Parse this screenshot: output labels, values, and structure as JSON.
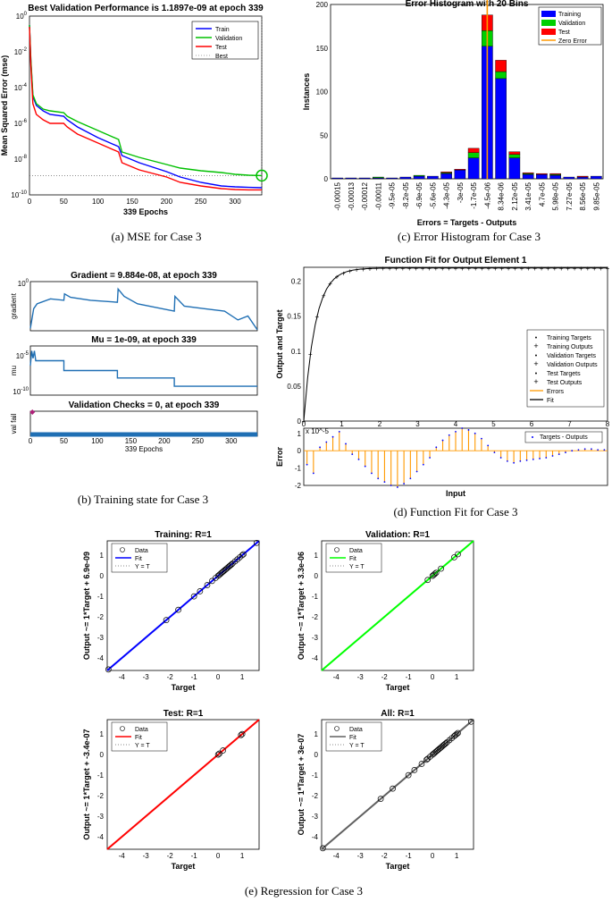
{
  "captions": {
    "a": "(a) MSE for Case 3",
    "b": "(b) Training state for Case 3",
    "c": "(c) Error Histogram for Case 3",
    "d": "(d) Function Fit for Case 3",
    "e": "(e) Regression for Case 3"
  },
  "chart_data": [
    {
      "id": "mse",
      "type": "line",
      "title": "Best Validation Performance is 1.1897e-09 at epoch 339",
      "xlabel": "339 Epochs",
      "ylabel": "Mean Squared Error  (mse)",
      "xlim": [
        0,
        339
      ],
      "yscale": "log",
      "ylim_exp": [
        -10,
        0
      ],
      "xticks": [
        "0",
        "50",
        "100",
        "150",
        "200",
        "250",
        "300"
      ],
      "yticks": [
        "10^0",
        "10^-2",
        "10^-4",
        "10^-6",
        "10^-8",
        "10^-10"
      ],
      "legend": [
        "Train",
        "Validation",
        "Test",
        "Best"
      ],
      "colors": [
        "#0000ff",
        "#00c000",
        "#ff0000",
        "#888888"
      ],
      "x": [
        0,
        2,
        5,
        10,
        20,
        30,
        50,
        55,
        70,
        100,
        130,
        135,
        160,
        200,
        220,
        250,
        280,
        300,
        320,
        339
      ],
      "series": [
        {
          "name": "Train",
          "log10": [
            -0.5,
            -2.5,
            -4.5,
            -5.0,
            -5.3,
            -5.5,
            -5.6,
            -5.8,
            -6.2,
            -6.8,
            -7.3,
            -7.8,
            -8.2,
            -8.7,
            -9.0,
            -9.3,
            -9.5,
            -9.55,
            -9.58,
            -9.6
          ]
        },
        {
          "name": "Validation",
          "log10": [
            -0.5,
            -2.4,
            -4.4,
            -4.9,
            -5.2,
            -5.3,
            -5.4,
            -5.6,
            -5.9,
            -6.4,
            -6.9,
            -7.6,
            -7.9,
            -8.3,
            -8.5,
            -8.65,
            -8.75,
            -8.85,
            -8.9,
            -8.92
          ]
        },
        {
          "name": "Test",
          "log10": [
            -0.6,
            -2.7,
            -4.9,
            -5.5,
            -5.8,
            -6.0,
            -6.0,
            -6.2,
            -6.6,
            -7.1,
            -7.6,
            -8.2,
            -8.6,
            -9.0,
            -9.3,
            -9.5,
            -9.65,
            -9.7,
            -9.72,
            -9.72
          ]
        }
      ],
      "best": {
        "epoch": 339,
        "log10": -8.92
      }
    },
    {
      "id": "training-state",
      "type": "line",
      "xlabel": "339 Epochs",
      "xticks": [
        "0",
        "50",
        "100",
        "150",
        "200",
        "250",
        "300"
      ],
      "panels": [
        {
          "title": "Gradient = 9.884e-08, at epoch 339",
          "ylabel": "gradient",
          "yticks": [
            "10^0"
          ],
          "x": [
            0,
            5,
            10,
            30,
            50,
            51,
            60,
            90,
            130,
            131,
            140,
            160,
            215,
            216,
            230,
            260,
            290,
            310,
            325,
            339
          ],
          "y": [
            0.95,
            0.55,
            0.45,
            0.35,
            0.38,
            0.25,
            0.32,
            0.38,
            0.42,
            0.15,
            0.3,
            0.45,
            0.6,
            0.3,
            0.5,
            0.55,
            0.6,
            0.78,
            0.7,
            0.98
          ]
        },
        {
          "title": "Mu = 1e-09, at epoch 339",
          "ylabel": "mu",
          "yticks": [
            "10^-5",
            "10^-10"
          ],
          "x": [
            0,
            2,
            4,
            6,
            8,
            50,
            50,
            130,
            130,
            215,
            215,
            339
          ],
          "y": [
            0.4,
            0.1,
            0.25,
            0.1,
            0.3,
            0.3,
            0.5,
            0.5,
            0.65,
            0.65,
            0.82,
            0.82
          ]
        },
        {
          "title": "Validation Checks = 0, at epoch 339",
          "ylabel": "val fail",
          "yticks": [],
          "point": {
            "epoch": 3,
            "value": 1
          }
        }
      ]
    },
    {
      "id": "histogram",
      "type": "bar",
      "title": "Error Histogram with 20 Bins",
      "xlabel": "Errors = Targets - Outputs",
      "ylabel": "Instances",
      "ylim": [
        0,
        200
      ],
      "yticks": [
        "0",
        "50",
        "100",
        "150",
        "200"
      ],
      "categories": [
        "-0.00015",
        "-0.00013",
        "-0.00012",
        "-0.00011",
        "-9.5e-05",
        "-8.2e-05",
        "-6.9e-05",
        "-5.6e-05",
        "-4.3e-05",
        "-3e-05",
        "-1.7e-05",
        "-4.5e-06",
        "8.34e-06",
        "2.12e-05",
        "3.41e-05",
        "4.7e-05",
        "5.98e-05",
        "7.27e-05",
        "8.56e-05",
        "9.85e-05"
      ],
      "series": [
        {
          "name": "Training",
          "color": "#0000ff",
          "values": [
            1,
            1,
            1,
            1,
            1,
            2,
            3,
            3,
            6,
            10,
            24,
            152,
            115,
            24,
            5,
            5,
            4,
            2,
            2,
            3
          ]
        },
        {
          "name": "Validation",
          "color": "#00d000",
          "values": [
            0,
            0,
            0,
            1,
            0,
            0,
            1,
            0,
            1,
            0,
            6,
            18,
            8,
            4,
            1,
            0,
            1,
            0,
            0,
            0
          ]
        },
        {
          "name": "Test",
          "color": "#ff0000",
          "values": [
            0,
            0,
            0,
            0,
            0,
            0,
            0,
            0,
            1,
            1,
            5,
            18,
            13,
            3,
            1,
            1,
            1,
            0,
            1,
            0
          ]
        }
      ],
      "zero_error": {
        "name": "Zero Error",
        "color": "#ff9900",
        "category_index": 11.5
      }
    },
    {
      "id": "function-fit",
      "type": "line",
      "title": "Function Fit for Output Element 1",
      "xlabel": "Input",
      "ylabel": "Output and Target",
      "exponent_label": "x 10^-5",
      "xlim": [
        0,
        8
      ],
      "ylim": [
        0,
        0.22
      ],
      "xticks": [
        "0",
        "1",
        "2",
        "3",
        "4",
        "5",
        "6",
        "7",
        "8"
      ],
      "yticks": [
        "0",
        "0.05",
        "0.1",
        "0.15",
        "0.2"
      ],
      "legend": [
        "Training Targets",
        "Training Outputs",
        "Validation Targets",
        "Validation Outputs",
        "Test Targets",
        "Test Outputs",
        "Errors",
        "Fit"
      ],
      "fit": {
        "asymptote": 0.219,
        "rate": 3.3
      },
      "error_panel": {
        "ylabel": "Error",
        "legend": "Targets - Outputs",
        "yticks": [
          "1",
          "0",
          "-1",
          "-2"
        ],
        "ylim": [
          -2,
          1.3
        ],
        "values": [
          -0.8,
          -1.3,
          0.2,
          0.5,
          0.8,
          1.1,
          0.4,
          -0.2,
          -0.5,
          -0.9,
          -1.3,
          -1.6,
          -1.8,
          -2.0,
          -2.1,
          -1.9,
          -1.6,
          -1.2,
          -0.8,
          -0.4,
          0.2,
          0.6,
          0.9,
          1.1,
          1.3,
          1.2,
          1.0,
          0.7,
          0.3,
          -0.1,
          -0.4,
          -0.6,
          -0.7,
          -0.6,
          -0.55,
          -0.5,
          -0.45,
          -0.4,
          -0.3,
          -0.2,
          -0.1,
          0,
          0.05,
          0.1,
          0.1,
          0.05,
          0.05
        ]
      }
    },
    {
      "id": "regression",
      "type": "scatter",
      "xlabel": "Target",
      "xticks": [
        "-4",
        "-3",
        "-2",
        "-1",
        "0",
        "1"
      ],
      "yticks": [
        "1",
        "0",
        "-1",
        "-2",
        "-3",
        "-4"
      ],
      "xlim": [
        -4.6,
        1.7
      ],
      "ylim": [
        -4.6,
        1.7
      ],
      "legend": [
        "Data",
        "Fit",
        "Y = T"
      ],
      "panels": [
        {
          "title": "Training: R=1",
          "ylabel": "Output ~= 1*Target + 6.9e-09",
          "fit_color": "#0000ff",
          "points": [
            -4.55,
            -2.15,
            -1.65,
            -1.0,
            -0.75,
            -0.45,
            -0.25,
            -0.1,
            0.0,
            0.05,
            0.1,
            0.15,
            0.2,
            0.25,
            0.3,
            0.35,
            0.4,
            0.45,
            0.5,
            0.55,
            0.6,
            0.7,
            0.8,
            0.9,
            1.0,
            1.05,
            1.6
          ]
        },
        {
          "title": "Validation: R=1",
          "ylabel": "Output ~= 1*Target + 3.3e-06",
          "fit_color": "#00ff00",
          "points": [
            -0.2,
            0.0,
            0.05,
            0.1,
            0.15,
            0.35,
            0.9,
            1.05
          ]
        },
        {
          "title": "Test: R=1",
          "ylabel": "Output ~= 1*Target + -3.4e-07",
          "fit_color": "#ff0000",
          "points": [
            0.0,
            0.05,
            0.2,
            0.95,
            1.0
          ]
        },
        {
          "title": "All: R=1",
          "ylabel": "Output ~= 1*Target + 3e-07",
          "fit_color": "#606060",
          "points": [
            -4.55,
            -2.15,
            -1.65,
            -1.0,
            -0.75,
            -0.45,
            -0.25,
            -0.2,
            -0.1,
            0.0,
            0.05,
            0.1,
            0.15,
            0.2,
            0.25,
            0.3,
            0.35,
            0.4,
            0.45,
            0.5,
            0.55,
            0.6,
            0.7,
            0.8,
            0.9,
            0.95,
            1.0,
            1.05,
            1.6
          ]
        }
      ]
    }
  ]
}
